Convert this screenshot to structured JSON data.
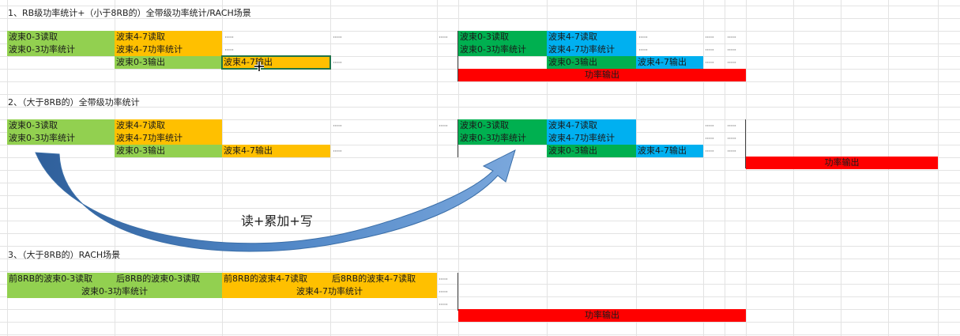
{
  "colors": {
    "green": "#92d050",
    "orange": "#ffc000",
    "dark_green": "#00b050",
    "blue": "#00b0f0",
    "red": "#ff0000",
    "arrow": "#4a7fc0"
  },
  "ellipsis": "······",
  "section1": {
    "title": "1、RB级功率统计+（小于8RB的）全带级功率统计/RACH场景",
    "c1r1": "波束0-3读取",
    "c1r2": "波束0-3功率统计",
    "c2r1": "波束4-7读取",
    "c2r2": "波束4-7功率统计",
    "c2r3": "波束0-3输出",
    "c3r3": "波束4-7输出",
    "right": {
      "c1r1": "波束0-3读取",
      "c1r2": "波束0-3功率统计",
      "c2r1": "波束4-7读取",
      "c2r2": "波束4-7功率统计",
      "c2r3": "波束0-3输出",
      "c3r3": "波束4-7输出",
      "power_out": "功率输出"
    }
  },
  "section2": {
    "title": "2、（大于8RB的）全带级功率统计",
    "c1r1": "波束0-3读取",
    "c1r2": "波束0-3功率统计",
    "c2r1": "波束4-7读取",
    "c2r2": "波束4-7功率统计",
    "c2r3": "波束0-3输出",
    "c3r3": "波束4-7输出",
    "right": {
      "c1r1": "波束0-3读取",
      "c1r2": "波束0-3功率统计",
      "c2r1": "波束4-7读取",
      "c2r2": "波束4-7功率统计",
      "c2r3": "波束0-3输出",
      "c3r3": "波束4-7输出",
      "power_out": "功率输出"
    },
    "arrow_label": "读+累加+写"
  },
  "section3": {
    "title": "3、（大于8RB的）RACH场景",
    "r1": [
      "前8RB的波束0-3读取",
      "后8RB的波束0-3读取",
      "前8RB的波束4-7读取",
      "后8RB的波束4-7读取"
    ],
    "r2a": "波束0-3功率统计",
    "r2b": "波束4-7功率统计",
    "power_out": "功率输出"
  }
}
